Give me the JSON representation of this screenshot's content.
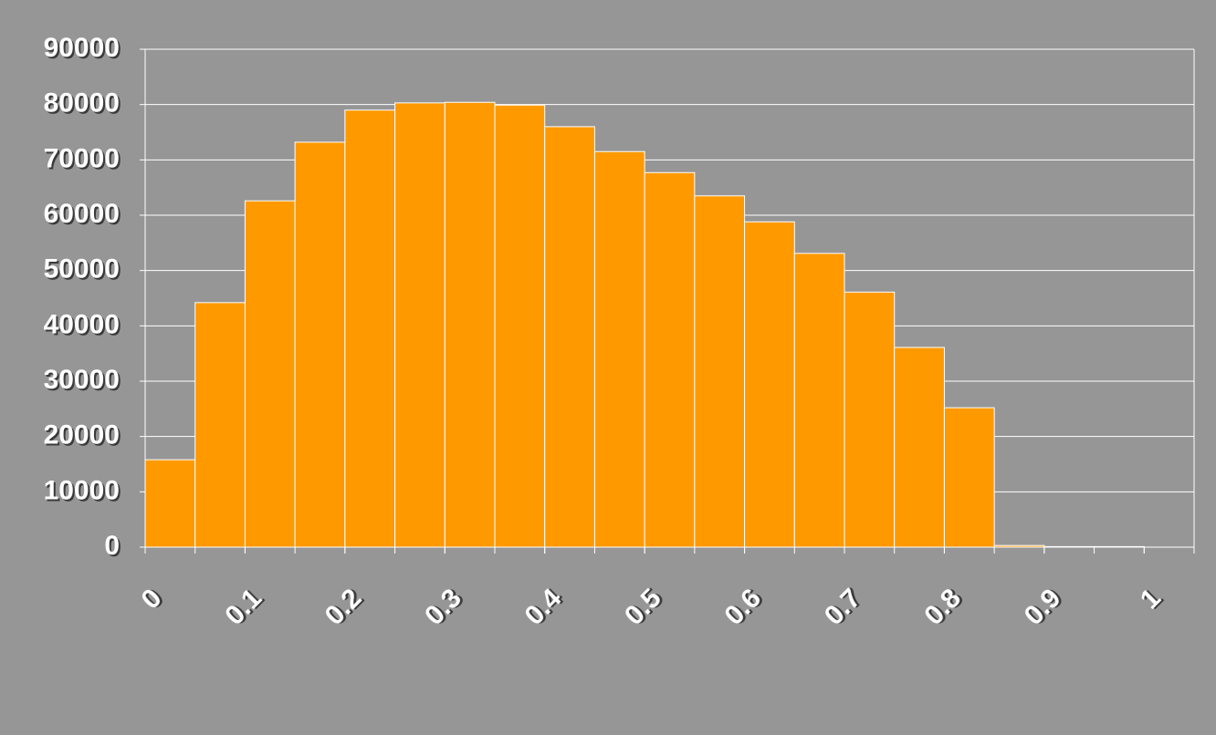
{
  "chart_data": {
    "type": "histogram",
    "bins": [
      0,
      0.05,
      0.1,
      0.15,
      0.2,
      0.25,
      0.3,
      0.35,
      0.4,
      0.45,
      0.5,
      0.55,
      0.6,
      0.65,
      0.7,
      0.75,
      0.8,
      0.85,
      0.9,
      0.95,
      1,
      1.05
    ],
    "values": [
      15800,
      44200,
      62600,
      73200,
      79000,
      80300,
      80400,
      79900,
      76000,
      71500,
      67700,
      63500,
      58800,
      53100,
      46100,
      36100,
      25200,
      300,
      100,
      100,
      0
    ],
    "color": "#ff9900",
    "xlim": [
      0,
      1.05
    ],
    "xticks": [
      0,
      0.1,
      0.2,
      0.3,
      0.4,
      0.5,
      0.6,
      0.7,
      0.8,
      0.9,
      1
    ],
    "ylim": [
      0,
      90000
    ],
    "yticks": [
      0,
      10000,
      20000,
      30000,
      40000,
      50000,
      60000,
      70000,
      80000,
      90000
    ],
    "grid": true
  }
}
